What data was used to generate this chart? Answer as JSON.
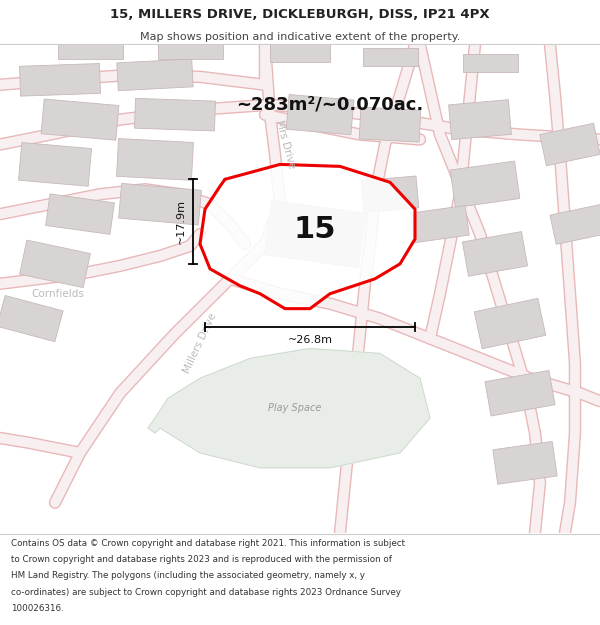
{
  "title_line1": "15, MILLERS DRIVE, DICKLEBURGH, DISS, IP21 4PX",
  "title_line2": "Map shows position and indicative extent of the property.",
  "area_text": "~283m²/~0.070ac.",
  "label_number": "15",
  "dim_width": "~26.8m",
  "dim_height": "~17.9m",
  "footer_lines": [
    "Contains OS data © Crown copyright and database right 2021. This information is subject",
    "to Crown copyright and database rights 2023 and is reproduced with the permission of",
    "HM Land Registry. The polygons (including the associated geometry, namely x, y",
    "co-ordinates) are subject to Crown copyright and database rights 2023 Ordnance Survey",
    "100026316."
  ],
  "map_bg": "#f8f4f4",
  "green_fill": "#e8ede8",
  "road_outline_color": "#e8b8b8",
  "road_fill_color": "#f8f0f0",
  "building_fill": "#d8d4d4",
  "building_edge": "#c8b8b8",
  "highlight_color": "#ee0000",
  "dim_color": "#111111",
  "text_dark": "#222222",
  "text_gray": "#aaaaaa",
  "road_label_color": "#bbbbbb"
}
